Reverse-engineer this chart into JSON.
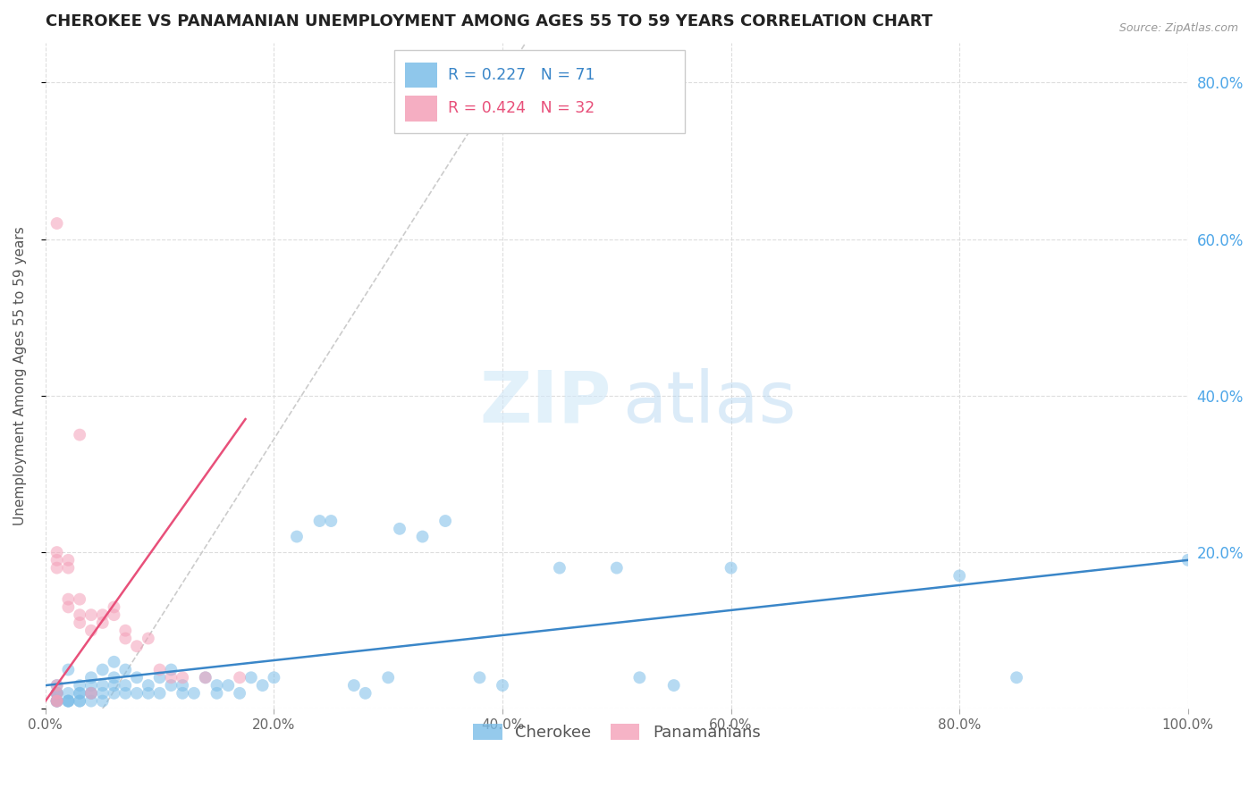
{
  "title": "CHEROKEE VS PANAMANIAN UNEMPLOYMENT AMONG AGES 55 TO 59 YEARS CORRELATION CHART",
  "source": "Source: ZipAtlas.com",
  "ylabel": "Unemployment Among Ages 55 to 59 years",
  "xlim": [
    0,
    100
  ],
  "ylim": [
    0,
    85
  ],
  "cherokee_color": "#7bbde8",
  "panamanian_color": "#f4a0b8",
  "cherokee_line_color": "#3a86c8",
  "panamanian_line_color": "#e8507a",
  "ref_line_color": "#cccccc",
  "legend_R1": "R = 0.227",
  "legend_N1": "N = 71",
  "legend_R2": "R = 0.424",
  "legend_N2": "N = 32",
  "legend_label1": "Cherokee",
  "legend_label2": "Panamanians",
  "background_color": "#ffffff",
  "grid_color": "#dddddd",
  "title_color": "#222222",
  "axis_label_color": "#555555",
  "right_axis_color": "#4da6e8",
  "marker_size": 10,
  "marker_alpha": 0.55,
  "cherokee_x": [
    1,
    1,
    1,
    1,
    1,
    1,
    1,
    2,
    2,
    2,
    2,
    2,
    3,
    3,
    3,
    3,
    3,
    4,
    4,
    4,
    4,
    4,
    5,
    5,
    5,
    5,
    6,
    6,
    6,
    6,
    7,
    7,
    7,
    8,
    8,
    9,
    9,
    10,
    10,
    11,
    11,
    12,
    12,
    13,
    14,
    15,
    15,
    16,
    17,
    18,
    19,
    20,
    22,
    24,
    25,
    27,
    28,
    30,
    31,
    33,
    35,
    38,
    40,
    45,
    50,
    52,
    55,
    60,
    80,
    85,
    100
  ],
  "cherokee_y": [
    2,
    1,
    3,
    1,
    2,
    1,
    2,
    1,
    2,
    1,
    5,
    1,
    2,
    1,
    3,
    2,
    1,
    2,
    1,
    3,
    2,
    4,
    3,
    2,
    5,
    1,
    3,
    2,
    4,
    6,
    2,
    3,
    5,
    4,
    2,
    3,
    2,
    2,
    4,
    3,
    5,
    3,
    2,
    2,
    4,
    3,
    2,
    3,
    2,
    4,
    3,
    4,
    22,
    24,
    24,
    3,
    2,
    4,
    23,
    22,
    24,
    4,
    3,
    18,
    18,
    4,
    3,
    18,
    17,
    4,
    19
  ],
  "panamanian_x": [
    1,
    1,
    1,
    1,
    1,
    1,
    1,
    1,
    2,
    2,
    2,
    2,
    3,
    3,
    3,
    3,
    4,
    4,
    4,
    5,
    5,
    6,
    6,
    7,
    7,
    8,
    9,
    10,
    11,
    12,
    14,
    17
  ],
  "panamanian_y": [
    1,
    2,
    3,
    62,
    19,
    18,
    20,
    1,
    18,
    19,
    14,
    13,
    12,
    14,
    35,
    11,
    12,
    10,
    2,
    12,
    11,
    13,
    12,
    9,
    10,
    8,
    9,
    5,
    4,
    4,
    4,
    4
  ],
  "cherokee_trend_x": [
    0,
    100
  ],
  "cherokee_trend_y": [
    3,
    19
  ],
  "panamanian_trend_x": [
    0,
    17.5
  ],
  "panamanian_trend_y": [
    1,
    37
  ]
}
